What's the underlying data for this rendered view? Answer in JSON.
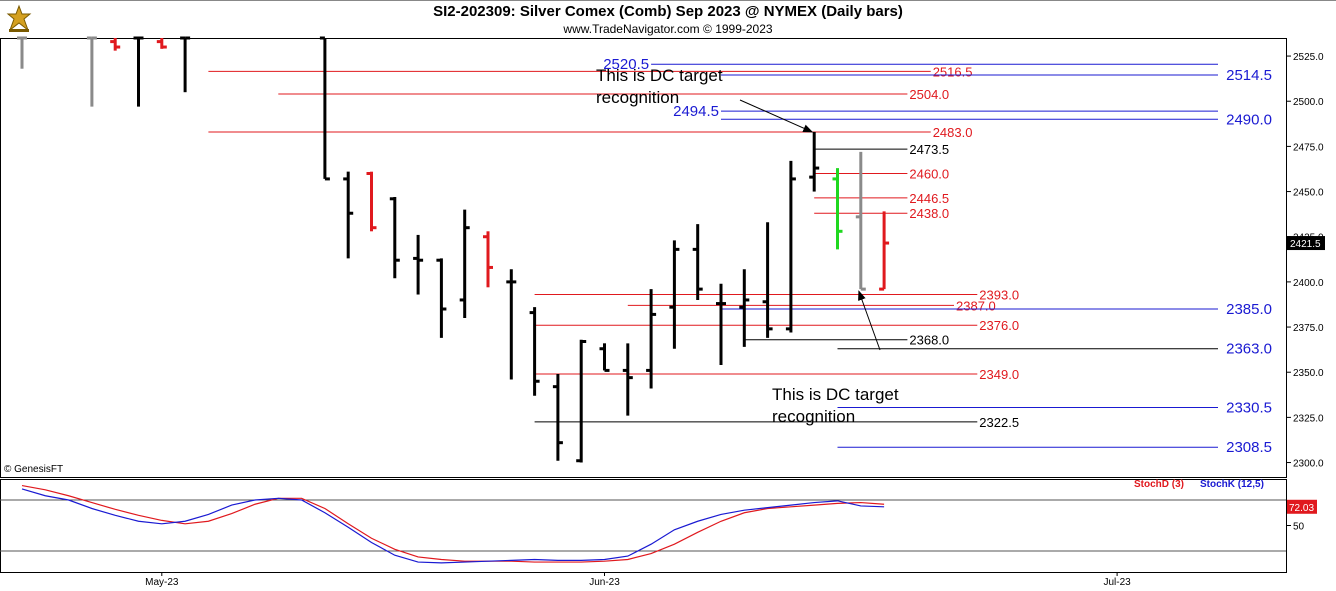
{
  "header": {
    "title": "SI2-202309:  Silver Comex (Comb) Sep 2023 @ NYMEX  (Daily bars)",
    "copyright": "www.TradeNavigator.com © 1999-2023",
    "watermark": "© GenesisFT"
  },
  "colors": {
    "red_level": "#e0191e",
    "blue_level": "#1a1ad2",
    "black_level": "#000000",
    "bar_black": "#000000",
    "bar_red": "#e0191e",
    "bar_green": "#1fd81f",
    "bar_gray": "#8a8a8a",
    "stoch_d": "#e0191e",
    "stoch_k": "#1a1ad2"
  },
  "chart_data": [
    {
      "type": "ohlc",
      "title": "SI2-202309:  Silver Comex (Comb) Sep 2023 @ NYMEX  (Daily bars)",
      "ylim": [
        2292,
        2535
      ],
      "y_ticks": [
        "2300.0",
        "2325.0",
        "2350.0",
        "2375.0",
        "2400.0",
        "2425.0",
        "2450.0",
        "2475.0",
        "2500.0",
        "2525.0"
      ],
      "x_ticks": [
        {
          "label": "May-23",
          "index": 6
        },
        {
          "label": "Jun-23",
          "index": 25
        },
        {
          "label": "Jul-23",
          "index": 47
        }
      ],
      "last_price": "2421.5",
      "bars": [
        {
          "i": 0,
          "o": 2535,
          "h": 2535,
          "l": 2518,
          "c": 2535,
          "color": "gray"
        },
        {
          "i": 3,
          "o": 2535,
          "h": 2535,
          "l": 2497,
          "c": 2535,
          "color": "gray"
        },
        {
          "i": 4,
          "o": 2533,
          "h": 2535,
          "l": 2528,
          "c": 2530,
          "color": "red"
        },
        {
          "i": 5,
          "o": 2535,
          "h": 2535,
          "l": 2497,
          "c": 2535,
          "color": "black"
        },
        {
          "i": 6,
          "o": 2533,
          "h": 2535,
          "l": 2529,
          "c": 2530,
          "color": "red"
        },
        {
          "i": 7,
          "o": 2535,
          "h": 2535,
          "l": 2505,
          "c": 2535,
          "color": "black"
        },
        {
          "i": 13,
          "o": 2535,
          "h": 2535,
          "l": 2457,
          "c": 2457,
          "color": "black"
        },
        {
          "i": 14,
          "o": 2457,
          "h": 2461,
          "l": 2413,
          "c": 2438,
          "color": "black"
        },
        {
          "i": 15,
          "o": 2460,
          "h": 2461,
          "l": 2428,
          "c": 2430,
          "color": "red"
        },
        {
          "i": 16,
          "o": 2446,
          "h": 2447,
          "l": 2402,
          "c": 2412,
          "color": "black"
        },
        {
          "i": 17,
          "o": 2413,
          "h": 2426,
          "l": 2393,
          "c": 2412,
          "color": "black"
        },
        {
          "i": 18,
          "o": 2412,
          "h": 2413,
          "l": 2369,
          "c": 2385,
          "color": "black"
        },
        {
          "i": 19,
          "o": 2390,
          "h": 2440,
          "l": 2380,
          "c": 2430,
          "color": "black"
        },
        {
          "i": 20,
          "o": 2425,
          "h": 2428,
          "l": 2397,
          "c": 2408,
          "color": "red"
        },
        {
          "i": 21,
          "o": 2400,
          "h": 2407,
          "l": 2346,
          "c": 2400,
          "color": "black"
        },
        {
          "i": 22,
          "o": 2383,
          "h": 2386,
          "l": 2337,
          "c": 2345,
          "color": "black"
        },
        {
          "i": 23,
          "o": 2342,
          "h": 2349,
          "l": 2301,
          "c": 2311,
          "color": "black"
        },
        {
          "i": 24,
          "o": 2301,
          "h": 2368,
          "l": 2300,
          "c": 2367,
          "color": "black"
        },
        {
          "i": 25,
          "o": 2363,
          "h": 2366,
          "l": 2351,
          "c": 2351,
          "color": "black"
        },
        {
          "i": 26,
          "o": 2351,
          "h": 2366,
          "l": 2326,
          "c": 2347,
          "color": "black"
        },
        {
          "i": 27,
          "o": 2351,
          "h": 2396,
          "l": 2341,
          "c": 2382,
          "color": "black"
        },
        {
          "i": 28,
          "o": 2386,
          "h": 2423,
          "l": 2363,
          "c": 2418,
          "color": "black"
        },
        {
          "i": 29,
          "o": 2418,
          "h": 2432,
          "l": 2390,
          "c": 2396,
          "color": "black"
        },
        {
          "i": 30,
          "o": 2388,
          "h": 2399,
          "l": 2354,
          "c": 2388,
          "color": "black"
        },
        {
          "i": 31,
          "o": 2386,
          "h": 2407,
          "l": 2364,
          "c": 2390,
          "color": "black"
        },
        {
          "i": 32,
          "o": 2389,
          "h": 2433,
          "l": 2369,
          "c": 2374,
          "color": "black"
        },
        {
          "i": 33,
          "o": 2374,
          "h": 2467,
          "l": 2372,
          "c": 2457,
          "color": "black"
        },
        {
          "i": 34,
          "o": 2458,
          "h": 2483,
          "l": 2450,
          "c": 2463,
          "color": "black"
        },
        {
          "i": 35,
          "o": 2457,
          "h": 2463,
          "l": 2418,
          "c": 2428,
          "color": "green"
        },
        {
          "i": 36,
          "o": 2436,
          "h": 2472,
          "l": 2396,
          "c": 2396,
          "color": "gray"
        },
        {
          "i": 37,
          "o": 2396,
          "h": 2439,
          "l": 2396,
          "c": 2421.5,
          "color": "red"
        }
      ],
      "levels": [
        {
          "value": 2520.5,
          "label": "2520.5",
          "color": "blue",
          "from": 27,
          "to": 53,
          "label_pos": "left"
        },
        {
          "value": 2516.5,
          "label": "2516.5",
          "color": "red",
          "from": 8,
          "to": 39,
          "label_pos": "mid"
        },
        {
          "value": 2514.5,
          "label": "2514.5",
          "color": "blue",
          "from": 30,
          "to": 53,
          "label_pos": "right"
        },
        {
          "value": 2504.0,
          "label": "2504.0",
          "color": "red",
          "from": 11,
          "to": 38,
          "label_pos": "mid"
        },
        {
          "value": 2494.5,
          "label": "2494.5",
          "color": "blue",
          "from": 30,
          "to": 52,
          "label_pos": "left"
        },
        {
          "value": 2490.0,
          "label": "2490.0",
          "color": "blue",
          "from": 30,
          "to": 53,
          "label_pos": "right"
        },
        {
          "value": 2483.0,
          "label": "2483.0",
          "color": "red",
          "from": 8,
          "to": 39,
          "label_pos": "mid"
        },
        {
          "value": 2473.5,
          "label": "2473.5",
          "color": "black",
          "from": 34,
          "to": 38,
          "label_pos": "mid"
        },
        {
          "value": 2460.0,
          "label": "2460.0",
          "color": "red",
          "from": 34,
          "to": 38,
          "label_pos": "mid"
        },
        {
          "value": 2446.5,
          "label": "2446.5",
          "color": "red",
          "from": 34,
          "to": 38,
          "label_pos": "mid"
        },
        {
          "value": 2438.0,
          "label": "2438.0",
          "color": "red",
          "from": 34,
          "to": 38,
          "label_pos": "mid"
        },
        {
          "value": 2393.0,
          "label": "2393.0",
          "color": "red",
          "from": 22,
          "to": 41,
          "label_pos": "mid"
        },
        {
          "value": 2387.0,
          "label": "2387.0",
          "color": "red",
          "from": 26,
          "to": 40,
          "label_pos": "mid"
        },
        {
          "value": 2385.0,
          "label": "2385.0",
          "color": "blue",
          "from": 30,
          "to": 53,
          "label_pos": "right"
        },
        {
          "value": 2376.0,
          "label": "2376.0",
          "color": "red",
          "from": 22,
          "to": 41,
          "label_pos": "mid"
        },
        {
          "value": 2368.0,
          "label": "2368.0",
          "color": "black",
          "from": 31,
          "to": 38,
          "label_pos": "mid"
        },
        {
          "value": 2363.0,
          "label": "2363.0",
          "color": "black",
          "from": 35,
          "to": 53,
          "label_pos": "right_blue"
        },
        {
          "value": 2349.0,
          "label": "2349.0",
          "color": "red",
          "from": 22,
          "to": 41,
          "label_pos": "mid"
        },
        {
          "value": 2330.5,
          "label": "2330.5",
          "color": "blue",
          "from": 35,
          "to": 53,
          "label_pos": "right"
        },
        {
          "value": 2322.5,
          "label": "2322.5",
          "color": "black",
          "from": 22,
          "to": 41,
          "label_pos": "mid"
        },
        {
          "value": 2308.5,
          "label": "2308.5",
          "color": "blue",
          "from": 35,
          "to": 53,
          "label_pos": "right"
        }
      ],
      "annotations": [
        {
          "text_lines": [
            "This is DC target",
            "recognition"
          ],
          "at_index": 34,
          "at_value": 2483
        },
        {
          "text_lines": [
            "This is DC target",
            "recognition"
          ],
          "at_index": 36,
          "at_value": 2396
        }
      ]
    },
    {
      "type": "line",
      "title": "",
      "ylim": [
        0,
        100
      ],
      "y_ticks": [
        "50"
      ],
      "reference_lines": [
        80,
        20
      ],
      "last_value": "72.03",
      "legend": [
        "StochD (3)",
        "StochK (12,5)"
      ],
      "x": [
        0,
        1,
        2,
        3,
        4,
        5,
        6,
        7,
        8,
        9,
        10,
        11,
        12,
        13,
        14,
        15,
        16,
        17,
        18,
        19,
        20,
        21,
        22,
        23,
        24,
        25,
        26,
        27,
        28,
        29,
        30,
        31,
        32,
        33,
        34,
        35,
        36,
        37
      ],
      "series": [
        {
          "name": "StochD (3)",
          "color": "red",
          "values": [
            97,
            92,
            85,
            77,
            69,
            62,
            56,
            52,
            55,
            64,
            75,
            82,
            82,
            70,
            52,
            35,
            22,
            13,
            10,
            8,
            8,
            8,
            7,
            7,
            7,
            8,
            10,
            17,
            28,
            42,
            55,
            65,
            70,
            72,
            74,
            76,
            77,
            75
          ]
        },
        {
          "name": "StochK (12,5)",
          "color": "blue",
          "values": [
            93,
            85,
            80,
            70,
            62,
            55,
            52,
            55,
            63,
            74,
            80,
            82,
            80,
            65,
            48,
            30,
            15,
            7,
            6,
            7,
            8,
            9,
            10,
            9,
            9,
            10,
            14,
            28,
            45,
            55,
            63,
            68,
            71,
            74,
            77,
            79,
            73,
            72
          ]
        }
      ]
    }
  ]
}
